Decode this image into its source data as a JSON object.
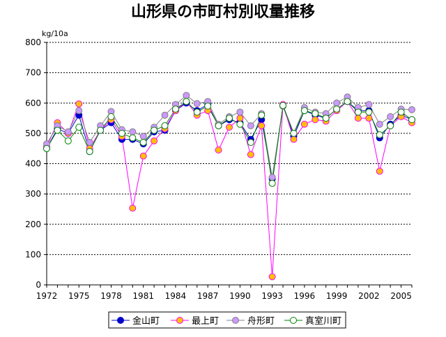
{
  "chart_data": {
    "type": "line",
    "title": "山形県の市町村別収量推移",
    "ylabel": "kg/10a",
    "xlabel": "",
    "ylim": [
      0,
      800
    ],
    "yticks": [
      0,
      100,
      200,
      300,
      400,
      500,
      600,
      700,
      800
    ],
    "xlim": [
      1972,
      2006
    ],
    "xticks": [
      1972,
      1975,
      1978,
      1981,
      1984,
      1987,
      1990,
      1993,
      1996,
      1999,
      2002,
      2005
    ],
    "grid": true,
    "legend_position": "bottom",
    "x": [
      1972,
      1973,
      1974,
      1975,
      1976,
      1977,
      1978,
      1979,
      1980,
      1981,
      1982,
      1983,
      1984,
      1985,
      1986,
      1987,
      1988,
      1989,
      1990,
      1991,
      1992,
      1993,
      1994,
      1995,
      1996,
      1997,
      1998,
      1999,
      2000,
      2001,
      2002,
      2003,
      2004,
      2005,
      2006
    ],
    "series": [
      {
        "name": "金山町",
        "color": "#0000cc",
        "marker_fill": "#0000cc",
        "values": [
          450,
          515,
          500,
          560,
          440,
          510,
          535,
          480,
          480,
          465,
          505,
          510,
          575,
          600,
          575,
          595,
          525,
          545,
          535,
          480,
          545,
          350,
          590,
          490,
          575,
          560,
          550,
          580,
          605,
          575,
          575,
          485,
          530,
          560,
          545
        ]
      },
      {
        "name": "最上町",
        "color": "#ff00ff",
        "marker_fill": "#ffc000",
        "values": [
          455,
          535,
          500,
          597,
          450,
          510,
          545,
          490,
          253,
          425,
          475,
          515,
          575,
          605,
          560,
          575,
          445,
          520,
          550,
          430,
          525,
          27,
          595,
          480,
          530,
          545,
          540,
          575,
          605,
          550,
          550,
          375,
          525,
          555,
          535
        ]
      },
      {
        "name": "舟形町",
        "color": "#808080",
        "marker_fill": "#cc99ff",
        "values": [
          465,
          525,
          505,
          575,
          470,
          525,
          572,
          512,
          505,
          490,
          520,
          560,
          595,
          625,
          598,
          605,
          530,
          555,
          570,
          525,
          565,
          355,
          590,
          500,
          585,
          570,
          565,
          600,
          620,
          585,
          595,
          530,
          555,
          580,
          578
        ]
      },
      {
        "name": "真室川町",
        "color": "#008000",
        "marker_fill": "#ffffff",
        "values": [
          450,
          510,
          475,
          520,
          440,
          510,
          555,
          500,
          485,
          470,
          510,
          525,
          580,
          605,
          570,
          590,
          525,
          550,
          530,
          470,
          560,
          335,
          592,
          500,
          575,
          565,
          550,
          580,
          605,
          570,
          570,
          495,
          525,
          570,
          545
        ]
      }
    ]
  }
}
